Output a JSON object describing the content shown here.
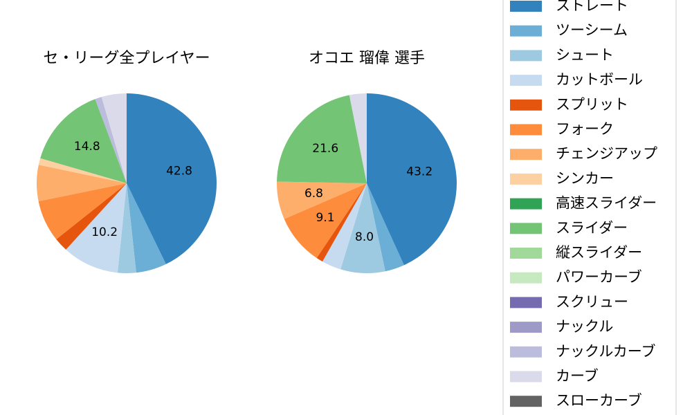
{
  "chart_data": [
    {
      "type": "pie",
      "title": "セ・リーグ全プレイヤー",
      "values": [
        42.8,
        5.5,
        3.3,
        10.2,
        2.5,
        7.5,
        6.5,
        1.2,
        0,
        14.8,
        0,
        0,
        0,
        0,
        1.2,
        4.5,
        0
      ],
      "value_labels": [
        "42.8",
        null,
        null,
        "10.2",
        null,
        null,
        null,
        null,
        null,
        "14.8",
        null,
        null,
        null,
        null,
        null,
        null,
        null
      ]
    },
    {
      "type": "pie",
      "title": "オコエ 瑠偉  選手",
      "values": [
        43.2,
        3.5,
        8.0,
        3.5,
        1.2,
        9.1,
        6.8,
        0,
        0,
        21.6,
        0,
        0,
        0,
        0,
        0,
        3.1,
        0
      ],
      "value_labels": [
        "43.2",
        null,
        "8.0",
        null,
        null,
        "9.1",
        "6.8",
        null,
        null,
        "21.6",
        null,
        null,
        null,
        null,
        null,
        null,
        null
      ]
    }
  ],
  "legend": {
    "labels": [
      "ストレート",
      "ツーシーム",
      "シュート",
      "カットボール",
      "スプリット",
      "フォーク",
      "チェンジアップ",
      "シンカー",
      "高速スライダー",
      "スライダー",
      "縦スライダー",
      "パワーカーブ",
      "スクリュー",
      "ナックル",
      "ナックルカーブ",
      "カーブ",
      "スローカーブ"
    ],
    "colors": [
      "#3182bd",
      "#6baed6",
      "#9ecae1",
      "#c6dbef",
      "#e6550d",
      "#fd8d3c",
      "#fdae6b",
      "#fdd0a2",
      "#31a354",
      "#74c476",
      "#a1d99b",
      "#c7e9c0",
      "#756bb1",
      "#9e9ac8",
      "#bcbddc",
      "#dadaeb",
      "#636363"
    ]
  }
}
